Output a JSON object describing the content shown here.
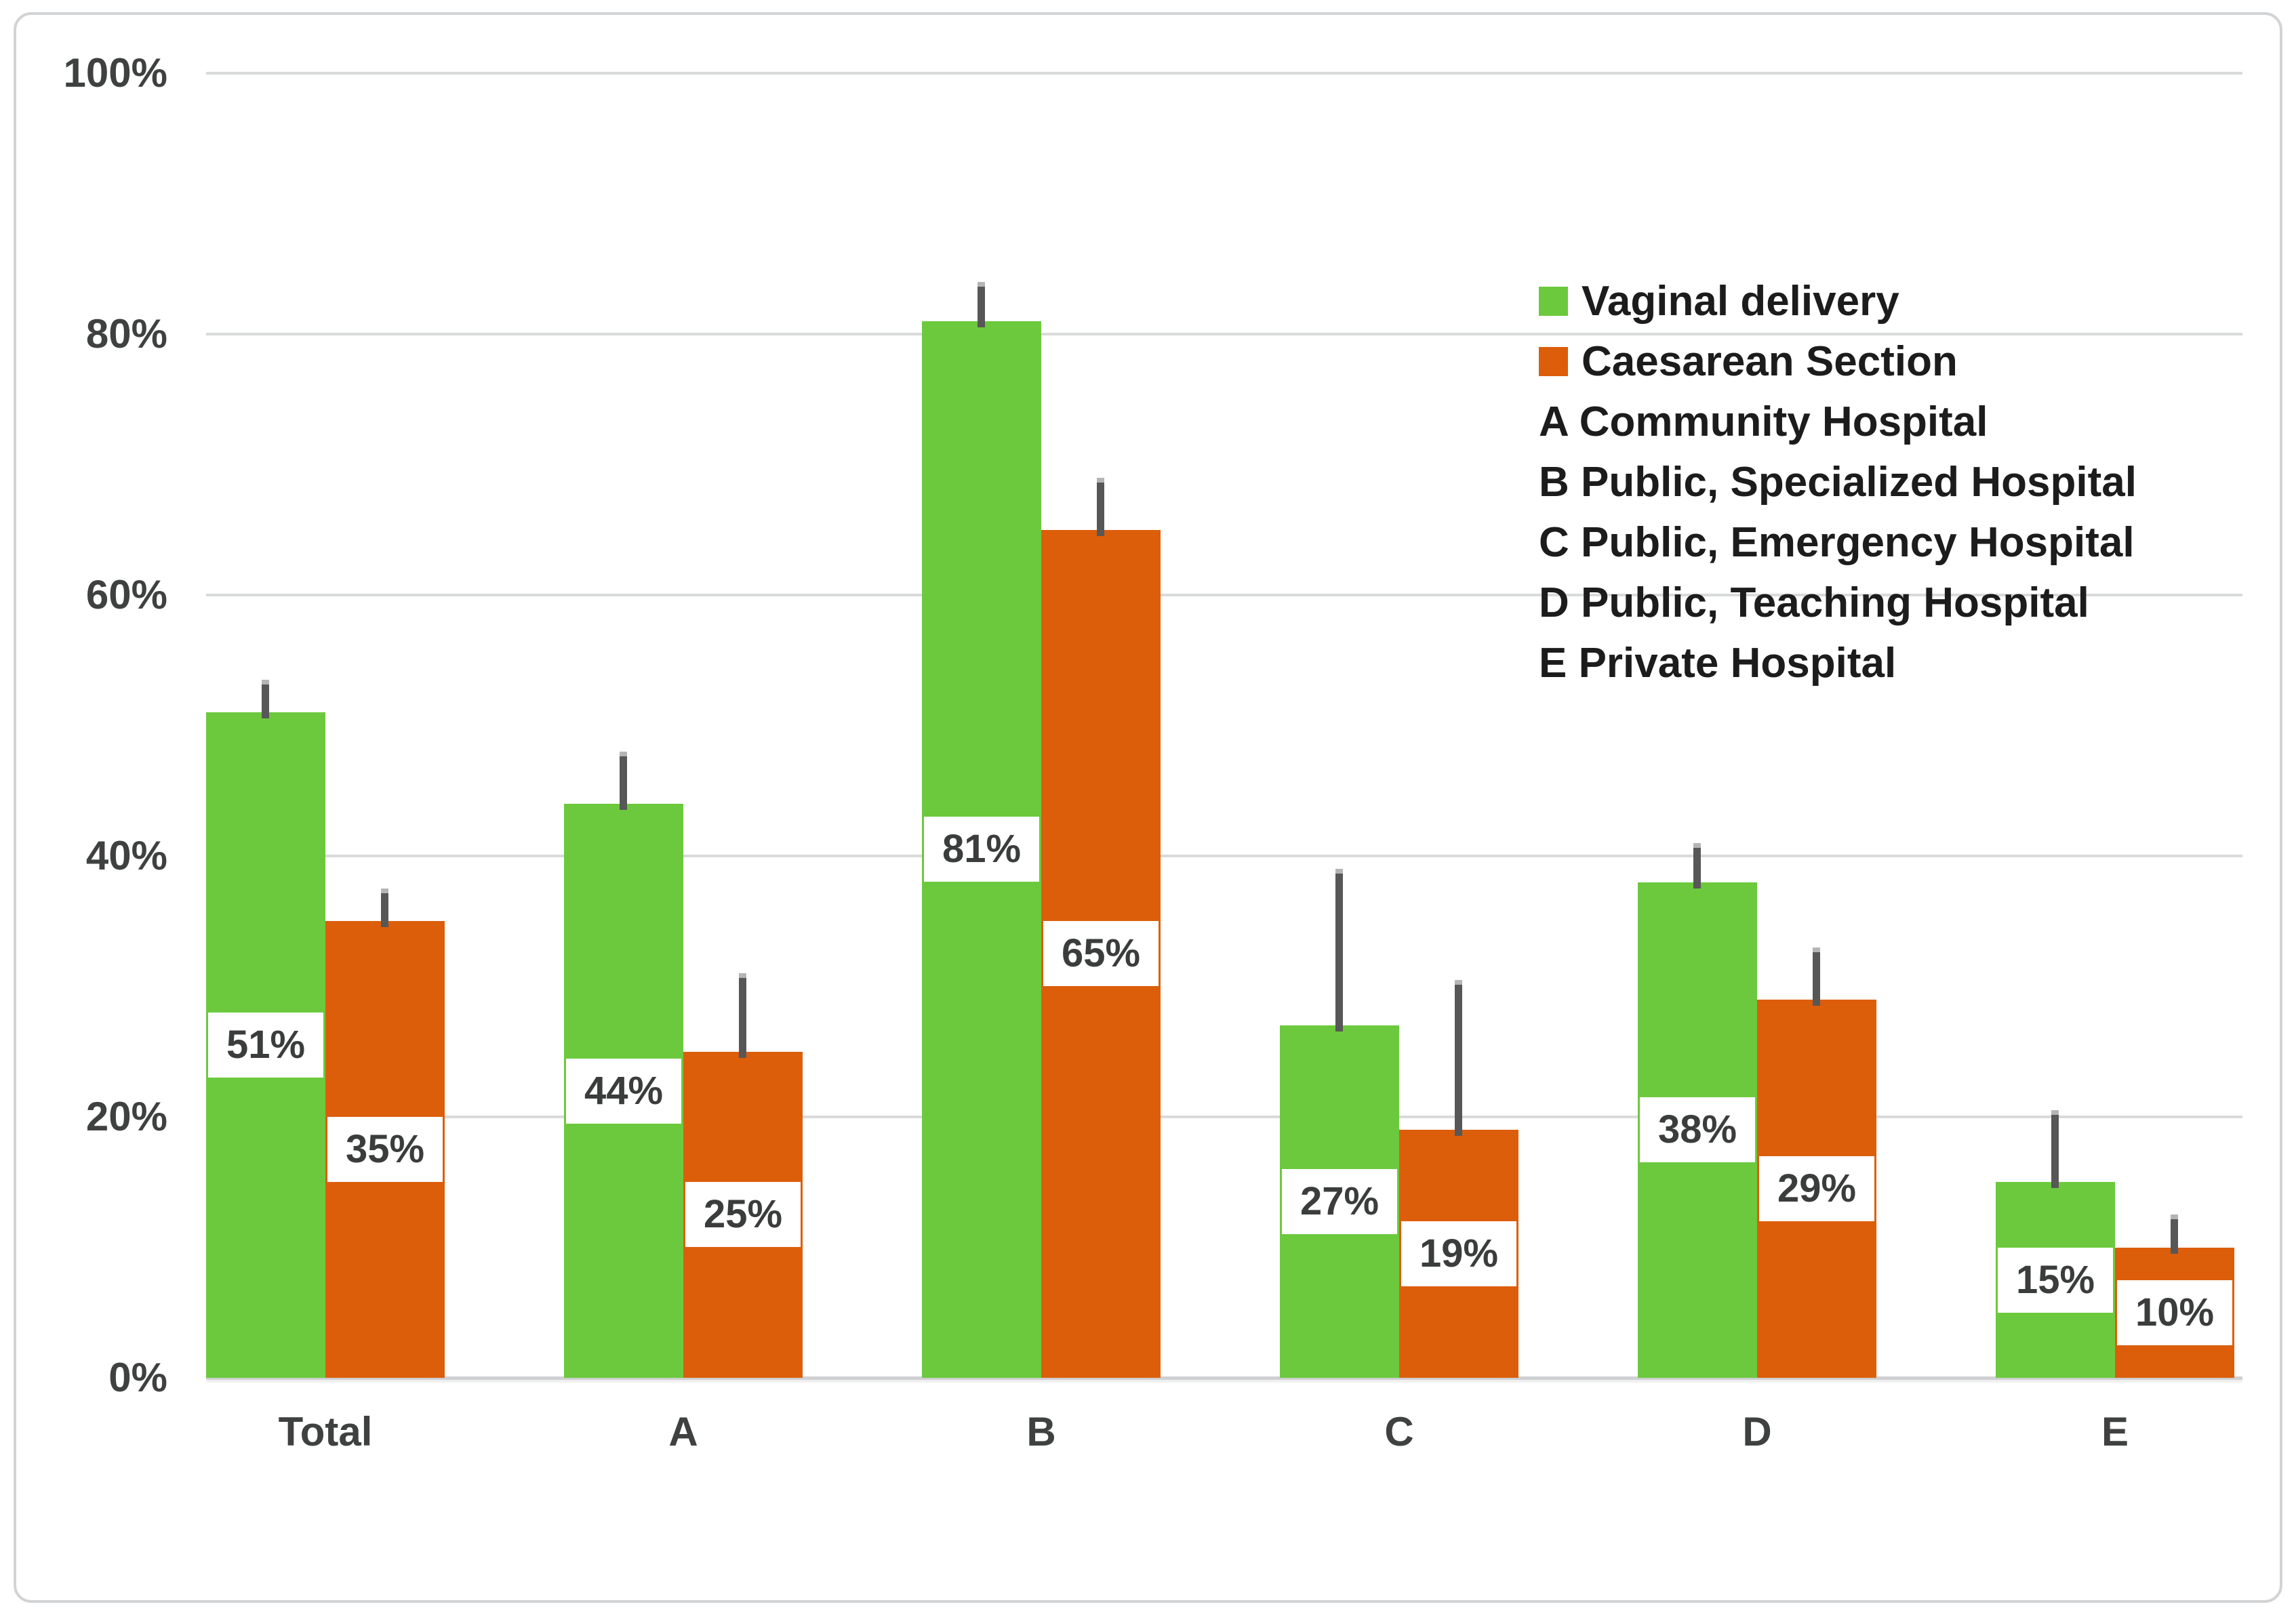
{
  "chart_data": {
    "type": "bar",
    "title": "",
    "categories": [
      "Total",
      "A",
      "B",
      "C",
      "D",
      "E"
    ],
    "series": [
      {
        "name": "Vaginal delivery",
        "color": "#6cc93d",
        "values": [
          51,
          44,
          81,
          27,
          38,
          15
        ],
        "labels": [
          "51%",
          "44%",
          "81%",
          "27%",
          "38%",
          "15%"
        ],
        "error_upper_to": [
          53.5,
          48,
          84,
          39,
          41,
          20.5
        ]
      },
      {
        "name": "Caesarean Section",
        "color": "#dc5e0b",
        "values": [
          35,
          25,
          65,
          19,
          29,
          10
        ],
        "labels": [
          "35%",
          "25%",
          "65%",
          "19%",
          "29%",
          "10%"
        ],
        "error_upper_to": [
          37.5,
          31,
          69,
          30.5,
          33,
          12.5
        ]
      }
    ],
    "y_ticks": [
      "0%",
      "20%",
      "40%",
      "60%",
      "80%",
      "100%"
    ],
    "ylim": [
      0,
      100
    ],
    "grid": "horizontal",
    "legend_position": "upper-right-inside",
    "legend_annotations": [
      "A Community Hospital",
      "B Public, Specialized Hospital",
      "C Public, Emergency Hospital",
      "D Public, Teaching Hospital",
      "E Private Hospital"
    ]
  },
  "style": {
    "bar_green": "#6cc93d",
    "bar_orange": "#dc5e0b",
    "gridline": "#d9dadb",
    "axis_line": "#cfd0d2",
    "error_bar": "#575757",
    "error_cap": "#b4b6b6",
    "tick_text": "#3f4040",
    "data_label_text": "#3b3c3c",
    "legend_text": "#1c1c1c",
    "frame_border": "#d2d3d5",
    "background": "#ffffff"
  }
}
